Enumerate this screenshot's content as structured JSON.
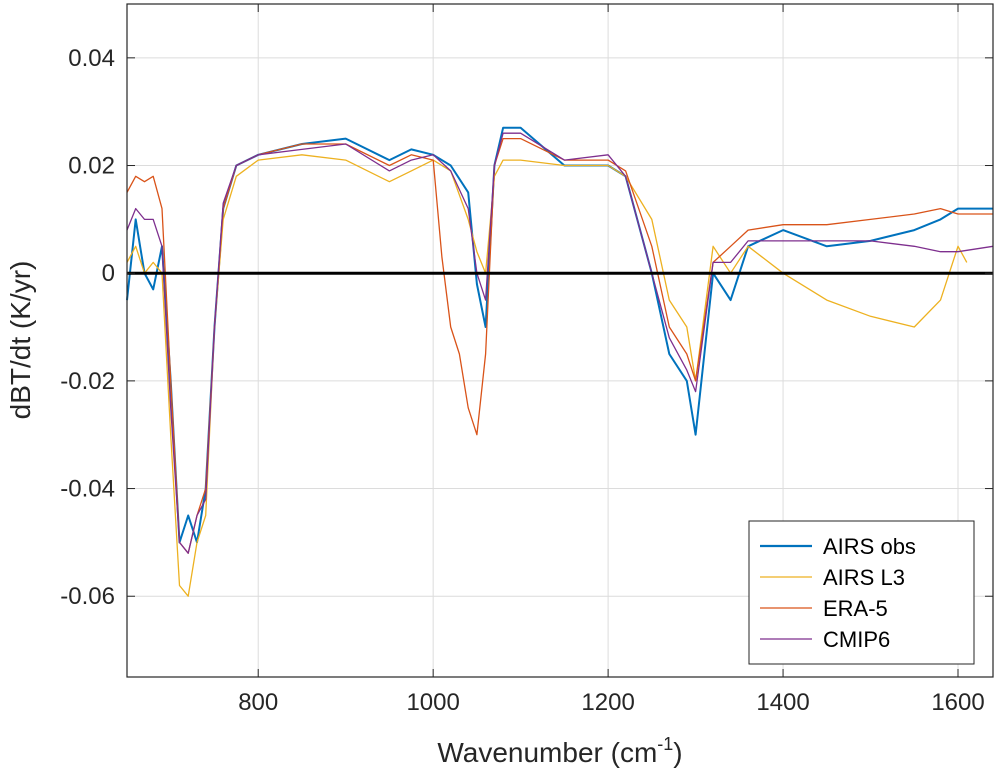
{
  "chart_data": {
    "type": "line",
    "xlabel": "Wavenumber (cm",
    "xlabel_superscript": "-1",
    "xlabel_suffix": ")",
    "ylabel": "dBT/dt (K/yr)",
    "xlim": [
      650,
      1640
    ],
    "ylim": [
      -0.075,
      0.05
    ],
    "xticks": [
      800,
      1000,
      1200,
      1400,
      1600
    ],
    "xtick_labels": [
      "800",
      "1000",
      "1200",
      "1400",
      "1600"
    ],
    "yticks": [
      -0.06,
      -0.04,
      -0.02,
      0,
      0.02,
      0.04
    ],
    "ytick_labels": [
      "-0.06",
      "-0.04",
      "-0.02",
      "0",
      "0.02",
      "0.04"
    ],
    "grid": true,
    "zero_line": true,
    "legend_position": "bottom-right",
    "series": [
      {
        "name": "AIRS obs",
        "color": "#0072BD",
        "points": [
          [
            650,
            -0.005
          ],
          [
            660,
            0.01
          ],
          [
            670,
            0.0
          ],
          [
            680,
            -0.003
          ],
          [
            690,
            0.005
          ],
          [
            700,
            -0.02
          ],
          [
            710,
            -0.05
          ],
          [
            720,
            -0.045
          ],
          [
            730,
            -0.05
          ],
          [
            740,
            -0.04
          ],
          [
            750,
            -0.01
          ],
          [
            760,
            0.012
          ],
          [
            775,
            0.02
          ],
          [
            800,
            0.022
          ],
          [
            850,
            0.024
          ],
          [
            900,
            0.025
          ],
          [
            950,
            0.021
          ],
          [
            975,
            0.023
          ],
          [
            1000,
            0.022
          ],
          [
            1020,
            0.02
          ],
          [
            1040,
            0.015
          ],
          [
            1050,
            -0.002
          ],
          [
            1060,
            -0.01
          ],
          [
            1070,
            0.02
          ],
          [
            1080,
            0.027
          ],
          [
            1100,
            0.027
          ],
          [
            1150,
            0.02
          ],
          [
            1200,
            0.02
          ],
          [
            1220,
            0.018
          ],
          [
            1250,
            0.0
          ],
          [
            1270,
            -0.015
          ],
          [
            1290,
            -0.02
          ],
          [
            1300,
            -0.03
          ],
          [
            1320,
            0.0
          ],
          [
            1340,
            -0.005
          ],
          [
            1360,
            0.005
          ],
          [
            1400,
            0.008
          ],
          [
            1450,
            0.005
          ],
          [
            1500,
            0.006
          ],
          [
            1550,
            0.008
          ],
          [
            1580,
            0.01
          ],
          [
            1600,
            0.012
          ],
          [
            1640,
            0.012
          ]
        ]
      },
      {
        "name": "AIRS L3",
        "color": "#EDB120",
        "points": [
          [
            650,
            0.002
          ],
          [
            660,
            0.005
          ],
          [
            670,
            0.0
          ],
          [
            680,
            0.002
          ],
          [
            690,
            0.0
          ],
          [
            700,
            -0.03
          ],
          [
            710,
            -0.058
          ],
          [
            720,
            -0.06
          ],
          [
            730,
            -0.05
          ],
          [
            740,
            -0.045
          ],
          [
            750,
            -0.01
          ],
          [
            760,
            0.01
          ],
          [
            775,
            0.018
          ],
          [
            800,
            0.021
          ],
          [
            850,
            0.022
          ],
          [
            900,
            0.021
          ],
          [
            950,
            0.017
          ],
          [
            975,
            0.019
          ],
          [
            1000,
            0.021
          ],
          [
            1020,
            0.019
          ],
          [
            1040,
            0.01
          ],
          [
            1050,
            0.004
          ],
          [
            1060,
            0.0
          ],
          [
            1070,
            0.018
          ],
          [
            1080,
            0.021
          ],
          [
            1100,
            0.021
          ],
          [
            1150,
            0.02
          ],
          [
            1200,
            0.02
          ],
          [
            1220,
            0.018
          ],
          [
            1250,
            0.01
          ],
          [
            1270,
            -0.005
          ],
          [
            1290,
            -0.01
          ],
          [
            1300,
            -0.02
          ],
          [
            1320,
            0.005
          ],
          [
            1340,
            0.0
          ],
          [
            1360,
            0.005
          ],
          [
            1400,
            0.0
          ],
          [
            1450,
            -0.005
          ],
          [
            1500,
            -0.008
          ],
          [
            1550,
            -0.01
          ],
          [
            1580,
            -0.005
          ],
          [
            1600,
            0.005
          ],
          [
            1610,
            0.002
          ]
        ]
      },
      {
        "name": "ERA-5",
        "color": "#D95319",
        "points": [
          [
            650,
            0.015
          ],
          [
            660,
            0.018
          ],
          [
            670,
            0.017
          ],
          [
            680,
            0.018
          ],
          [
            690,
            0.012
          ],
          [
            700,
            -0.02
          ],
          [
            710,
            -0.05
          ],
          [
            720,
            -0.052
          ],
          [
            730,
            -0.045
          ],
          [
            740,
            -0.04
          ],
          [
            750,
            -0.01
          ],
          [
            760,
            0.012
          ],
          [
            775,
            0.02
          ],
          [
            800,
            0.022
          ],
          [
            850,
            0.024
          ],
          [
            900,
            0.024
          ],
          [
            950,
            0.02
          ],
          [
            975,
            0.022
          ],
          [
            1000,
            0.021
          ],
          [
            1010,
            0.003
          ],
          [
            1020,
            -0.01
          ],
          [
            1030,
            -0.015
          ],
          [
            1040,
            -0.025
          ],
          [
            1050,
            -0.03
          ],
          [
            1060,
            -0.015
          ],
          [
            1070,
            0.02
          ],
          [
            1080,
            0.025
          ],
          [
            1100,
            0.025
          ],
          [
            1150,
            0.021
          ],
          [
            1200,
            0.021
          ],
          [
            1220,
            0.019
          ],
          [
            1250,
            0.005
          ],
          [
            1270,
            -0.01
          ],
          [
            1290,
            -0.015
          ],
          [
            1300,
            -0.02
          ],
          [
            1320,
            0.002
          ],
          [
            1340,
            0.005
          ],
          [
            1360,
            0.008
          ],
          [
            1400,
            0.009
          ],
          [
            1450,
            0.009
          ],
          [
            1500,
            0.01
          ],
          [
            1550,
            0.011
          ],
          [
            1580,
            0.012
          ],
          [
            1600,
            0.011
          ],
          [
            1640,
            0.011
          ]
        ]
      },
      {
        "name": "CMIP6",
        "color": "#7E2F8E",
        "points": [
          [
            650,
            0.008
          ],
          [
            660,
            0.012
          ],
          [
            670,
            0.01
          ],
          [
            680,
            0.01
          ],
          [
            690,
            0.005
          ],
          [
            700,
            -0.025
          ],
          [
            710,
            -0.05
          ],
          [
            720,
            -0.052
          ],
          [
            730,
            -0.045
          ],
          [
            740,
            -0.042
          ],
          [
            750,
            -0.01
          ],
          [
            760,
            0.013
          ],
          [
            775,
            0.02
          ],
          [
            800,
            0.022
          ],
          [
            850,
            0.023
          ],
          [
            900,
            0.024
          ],
          [
            950,
            0.019
          ],
          [
            975,
            0.021
          ],
          [
            1000,
            0.022
          ],
          [
            1020,
            0.019
          ],
          [
            1040,
            0.012
          ],
          [
            1050,
            0.0
          ],
          [
            1060,
            -0.005
          ],
          [
            1070,
            0.02
          ],
          [
            1080,
            0.026
          ],
          [
            1100,
            0.026
          ],
          [
            1150,
            0.021
          ],
          [
            1200,
            0.022
          ],
          [
            1220,
            0.018
          ],
          [
            1250,
            0.0
          ],
          [
            1270,
            -0.012
          ],
          [
            1290,
            -0.018
          ],
          [
            1300,
            -0.022
          ],
          [
            1320,
            0.002
          ],
          [
            1340,
            0.002
          ],
          [
            1360,
            0.006
          ],
          [
            1400,
            0.006
          ],
          [
            1450,
            0.006
          ],
          [
            1500,
            0.006
          ],
          [
            1550,
            0.005
          ],
          [
            1580,
            0.004
          ],
          [
            1600,
            0.004
          ],
          [
            1640,
            0.005
          ]
        ]
      }
    ]
  }
}
